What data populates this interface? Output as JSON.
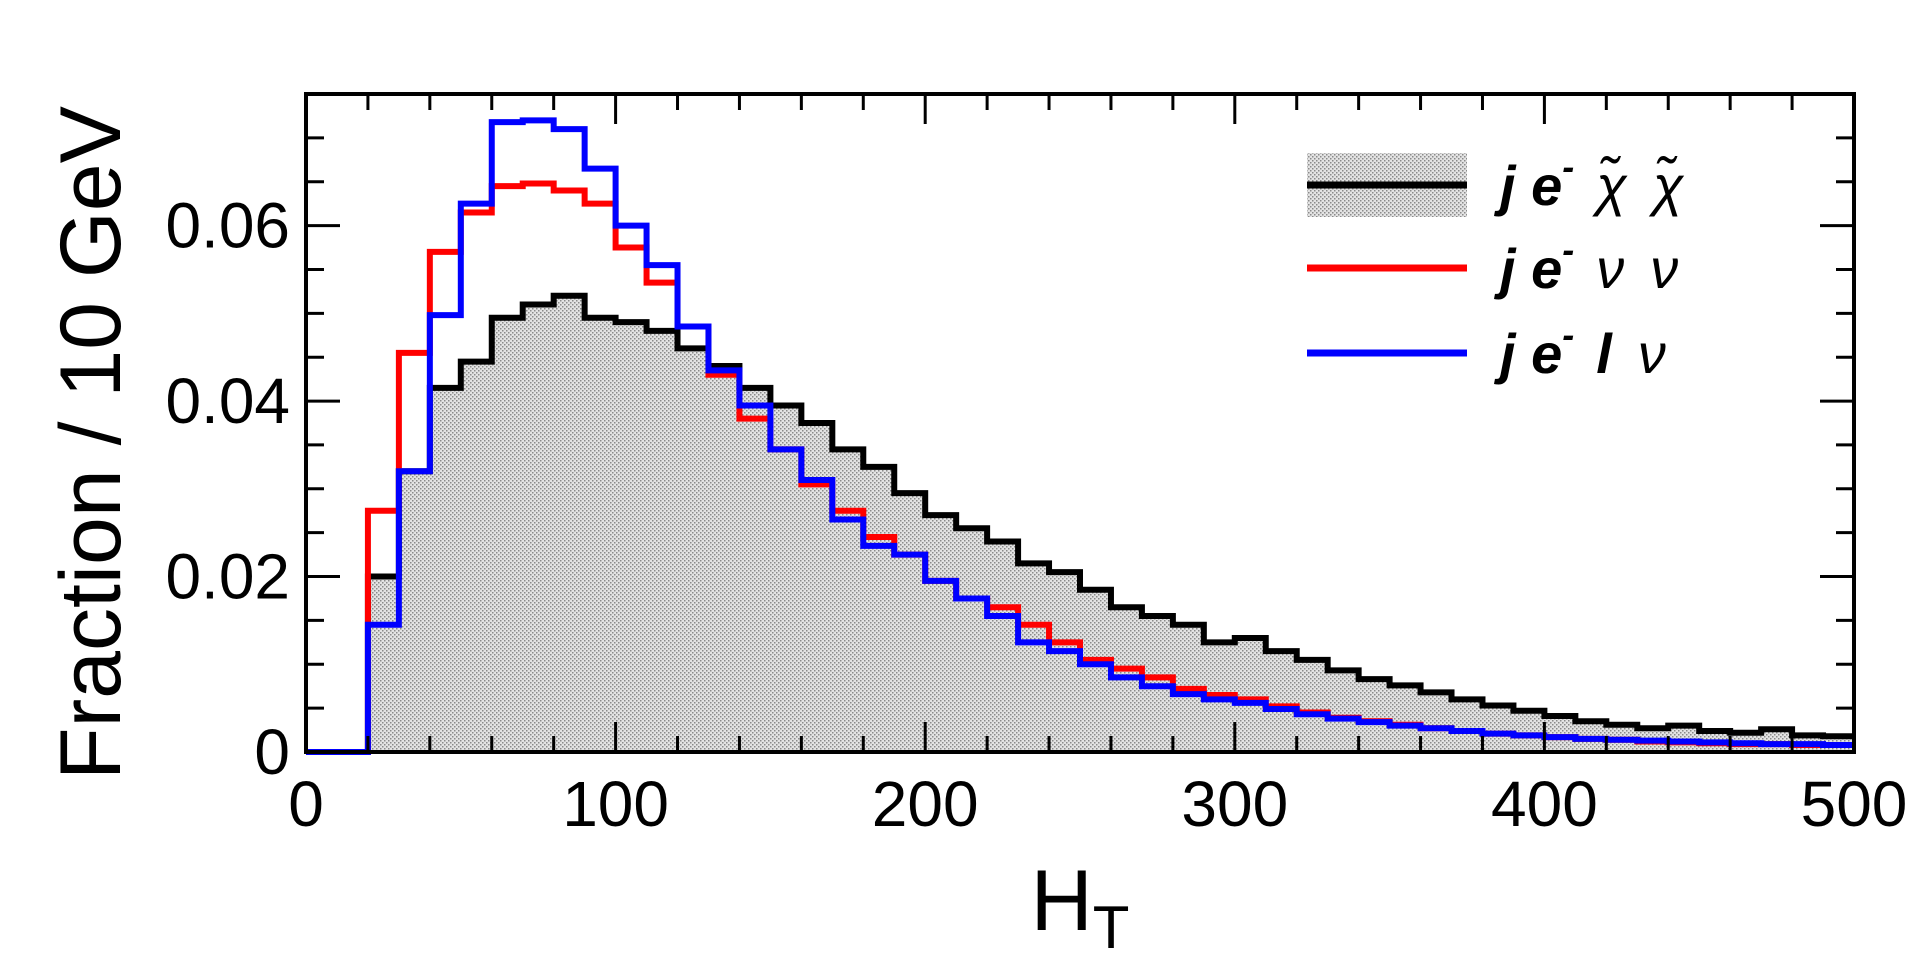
{
  "chart_data": {
    "type": "line",
    "subtype": "step-histogram",
    "bin_width": 10,
    "xlabel": "H",
    "xlabel_sub": "T",
    "ylabel": "Fraction / 10 GeV",
    "xlim": [
      0,
      500
    ],
    "ylim": [
      0,
      0.075
    ],
    "x_ticks": [
      0,
      100,
      200,
      300,
      400,
      500
    ],
    "x_tick_labels": [
      "0",
      "100",
      "200",
      "300",
      "400",
      "500"
    ],
    "y_ticks": [
      0,
      0.02,
      0.04,
      0.06
    ],
    "y_tick_labels": [
      "0",
      "0.02",
      "0.04",
      "0.06"
    ],
    "grid": false,
    "legend_position": "top-right",
    "bin_edges": [
      0,
      10,
      20,
      30,
      40,
      50,
      60,
      70,
      80,
      90,
      100,
      110,
      120,
      130,
      140,
      150,
      160,
      170,
      180,
      190,
      200,
      210,
      220,
      230,
      240,
      250,
      260,
      270,
      280,
      290,
      300,
      310,
      320,
      330,
      340,
      350,
      360,
      370,
      380,
      390,
      400,
      410,
      420,
      430,
      440,
      450,
      460,
      470,
      480,
      490,
      500
    ],
    "series": [
      {
        "name": "j e⁻ χ̃ χ̃",
        "legend_parts": [
          "j",
          "e",
          "-",
          "χ̃",
          "χ̃"
        ],
        "color": "#000000",
        "filled": true,
        "fill_color": "#d9d9d9",
        "values": [
          0,
          0,
          0.02,
          0.032,
          0.0415,
          0.0445,
          0.0495,
          0.051,
          0.052,
          0.0495,
          0.049,
          0.048,
          0.046,
          0.044,
          0.0415,
          0.0395,
          0.0375,
          0.0345,
          0.0325,
          0.0295,
          0.027,
          0.0255,
          0.024,
          0.0215,
          0.0205,
          0.0185,
          0.0165,
          0.0155,
          0.0145,
          0.0125,
          0.013,
          0.0115,
          0.0105,
          0.0093,
          0.0083,
          0.0076,
          0.0068,
          0.006,
          0.0053,
          0.0047,
          0.0041,
          0.0035,
          0.0031,
          0.0027,
          0.003,
          0.0024,
          0.0022,
          0.0026,
          0.0019,
          0.0018
        ]
      },
      {
        "name": "j e⁻ ν ν",
        "legend_parts": [
          "j",
          "e",
          "-",
          "ν",
          "ν"
        ],
        "color": "#ff0000",
        "filled": false,
        "values": [
          0,
          0,
          0.0275,
          0.0455,
          0.057,
          0.0615,
          0.0645,
          0.0648,
          0.064,
          0.0625,
          0.0575,
          0.0535,
          0.0485,
          0.043,
          0.038,
          0.0345,
          0.0305,
          0.0275,
          0.0245,
          0.0225,
          0.0195,
          0.0175,
          0.0165,
          0.0145,
          0.0125,
          0.0105,
          0.0095,
          0.0085,
          0.0072,
          0.0065,
          0.006,
          0.0052,
          0.0045,
          0.0039,
          0.0035,
          0.0031,
          0.0027,
          0.0024,
          0.0021,
          0.0019,
          0.0017,
          0.0015,
          0.0014,
          0.0012,
          0.0011,
          0.001,
          0.0009,
          0.0009,
          0.0008,
          0.0008
        ]
      },
      {
        "name": "j e⁻ l ν",
        "legend_parts": [
          "j",
          "e",
          "-",
          "l",
          "ν"
        ],
        "color": "#0000ff",
        "filled": false,
        "values": [
          0,
          0,
          0.0145,
          0.032,
          0.0498,
          0.0625,
          0.0718,
          0.072,
          0.071,
          0.0665,
          0.06,
          0.0555,
          0.0485,
          0.0435,
          0.0395,
          0.0345,
          0.031,
          0.0265,
          0.0235,
          0.0225,
          0.0195,
          0.0175,
          0.0155,
          0.0125,
          0.0115,
          0.01,
          0.0085,
          0.0075,
          0.0066,
          0.006,
          0.0056,
          0.0049,
          0.0043,
          0.0038,
          0.0034,
          0.003,
          0.0027,
          0.0024,
          0.0021,
          0.0019,
          0.0017,
          0.0015,
          0.0014,
          0.0013,
          0.0012,
          0.0011,
          0.001,
          0.0009,
          0.0009,
          0.0008
        ]
      }
    ]
  }
}
